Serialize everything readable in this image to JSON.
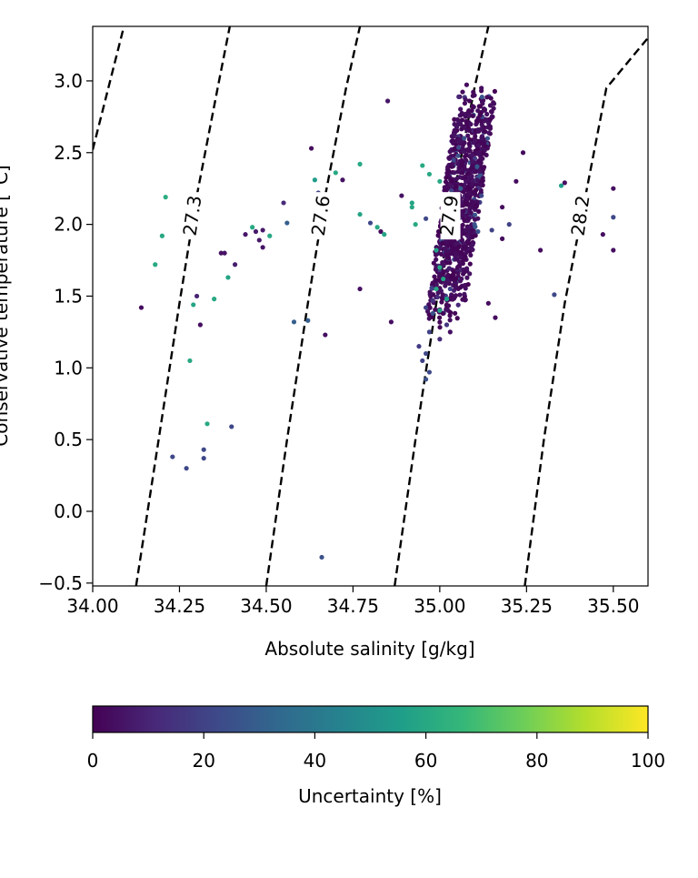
{
  "chart_data": {
    "type": "scatter",
    "xlabel": "Absolute salinity [g/kg]",
    "ylabel": "Conservative temperature [°C]",
    "xlim": [
      34.0,
      35.6
    ],
    "ylim": [
      -0.52,
      3.38
    ],
    "x_ticks": [
      34.0,
      34.25,
      34.5,
      34.75,
      35.0,
      35.25,
      35.5
    ],
    "x_tick_labels": [
      "34.00",
      "34.25",
      "34.50",
      "34.75",
      "35.00",
      "35.25",
      "35.50"
    ],
    "y_ticks": [
      -0.5,
      0.0,
      0.5,
      1.0,
      1.5,
      2.0,
      2.5,
      3.0
    ],
    "y_tick_labels": [
      "−0.5",
      "0.0",
      "0.5",
      "1.0",
      "1.5",
      "2.0",
      "2.5",
      "3.0"
    ],
    "grid": false,
    "isopycnals": {
      "style": "dashed",
      "color": "#000000",
      "lines": [
        {
          "label": "",
          "points": [
            [
              34.0,
              2.52
            ],
            [
              34.09,
              3.38
            ]
          ]
        },
        {
          "label": "27.3",
          "points": [
            [
              34.125,
              -0.52
            ],
            [
              34.19,
              0.5
            ],
            [
              34.25,
              1.45
            ],
            [
              34.3,
              2.2
            ],
            [
              34.36,
              2.95
            ],
            [
              34.395,
              3.38
            ]
          ]
        },
        {
          "label": "27.6",
          "points": [
            [
              34.5,
              -0.52
            ],
            [
              34.56,
              0.5
            ],
            [
              34.62,
              1.45
            ],
            [
              34.67,
              2.2
            ],
            [
              34.73,
              2.95
            ],
            [
              34.77,
              3.38
            ]
          ]
        },
        {
          "label": "27.9",
          "points": [
            [
              34.87,
              -0.52
            ],
            [
              34.93,
              0.5
            ],
            [
              34.99,
              1.45
            ],
            [
              35.04,
              2.2
            ],
            [
              35.1,
              2.95
            ],
            [
              35.14,
              3.38
            ]
          ]
        },
        {
          "label": "28.2",
          "points": [
            [
              35.245,
              -0.52
            ],
            [
              35.3,
              0.5
            ],
            [
              35.36,
              1.45
            ],
            [
              35.42,
              2.2
            ],
            [
              35.48,
              2.95
            ],
            [
              35.6,
              3.3
            ]
          ]
        }
      ]
    },
    "colorbar": {
      "label": "Uncertainty [%]",
      "range": [
        0,
        100
      ],
      "ticks": [
        0,
        20,
        40,
        60,
        80,
        100
      ],
      "tick_labels": [
        "0",
        "20",
        "40",
        "60",
        "80",
        "100"
      ],
      "colormap": "viridis",
      "colormap_stops": [
        "#440154",
        "#482878",
        "#3e4989",
        "#31688e",
        "#26828e",
        "#1f9e89",
        "#35b779",
        "#6ece58",
        "#b5de2b",
        "#fde725"
      ],
      "orientation": "horizontal"
    },
    "series": [
      {
        "color_encoding": "uncertainty_percent",
        "points": [
          [
            34.14,
            1.42,
            3
          ],
          [
            34.18,
            1.72,
            60
          ],
          [
            34.2,
            1.92,
            60
          ],
          [
            34.21,
            2.19,
            62
          ],
          [
            34.23,
            0.38,
            22
          ],
          [
            34.27,
            0.3,
            22
          ],
          [
            34.28,
            1.05,
            60
          ],
          [
            34.29,
            1.44,
            58
          ],
          [
            34.3,
            1.5,
            10
          ],
          [
            34.31,
            1.3,
            4
          ],
          [
            34.32,
            0.43,
            22
          ],
          [
            34.32,
            0.37,
            22
          ],
          [
            34.33,
            0.61,
            60
          ],
          [
            34.35,
            1.48,
            60
          ],
          [
            34.37,
            1.8,
            5
          ],
          [
            34.38,
            1.8,
            5
          ],
          [
            34.39,
            1.63,
            58
          ],
          [
            34.4,
            0.59,
            22
          ],
          [
            34.41,
            1.72,
            8
          ],
          [
            34.44,
            1.93,
            6
          ],
          [
            34.46,
            1.98,
            60
          ],
          [
            34.47,
            1.95,
            7
          ],
          [
            34.48,
            1.89,
            7
          ],
          [
            34.49,
            1.84,
            6
          ],
          [
            34.49,
            1.96,
            7
          ],
          [
            34.51,
            1.92,
            60
          ],
          [
            34.55,
            2.15,
            12
          ],
          [
            34.56,
            2.01,
            30
          ],
          [
            34.58,
            1.32,
            30
          ],
          [
            34.62,
            1.33,
            30
          ],
          [
            34.63,
            2.53,
            3
          ],
          [
            34.64,
            2.31,
            55
          ],
          [
            34.65,
            2.22,
            20
          ],
          [
            34.66,
            -0.32,
            25
          ],
          [
            34.67,
            1.23,
            4
          ],
          [
            34.68,
            2.18,
            5
          ],
          [
            34.7,
            2.36,
            60
          ],
          [
            34.72,
            2.31,
            5
          ],
          [
            34.77,
            2.42,
            60
          ],
          [
            34.77,
            2.07,
            58
          ],
          [
            34.77,
            1.55,
            4
          ],
          [
            34.8,
            2.01,
            22
          ],
          [
            34.82,
            1.98,
            60
          ],
          [
            34.83,
            1.95,
            3
          ],
          [
            34.84,
            1.93,
            58
          ],
          [
            34.85,
            2.86,
            6
          ],
          [
            34.86,
            1.32,
            4
          ],
          [
            34.89,
            2.2,
            5
          ],
          [
            34.92,
            2.12,
            60
          ],
          [
            34.92,
            2.15,
            58
          ],
          [
            34.93,
            2.0,
            60
          ],
          [
            34.95,
            2.41,
            60
          ],
          [
            34.96,
            2.04,
            22
          ],
          [
            34.97,
            2.35,
            60
          ],
          [
            34.99,
            1.82,
            58
          ],
          [
            35.0,
            1.7,
            60
          ],
          [
            35.01,
            1.62,
            58
          ],
          [
            34.99,
            1.55,
            60
          ],
          [
            34.98,
            1.38,
            25
          ],
          [
            34.97,
            1.25,
            20
          ],
          [
            34.96,
            1.1,
            22
          ],
          [
            34.95,
            1.05,
            20
          ],
          [
            34.96,
            0.92,
            25
          ],
          [
            34.97,
            0.97,
            22
          ],
          [
            34.94,
            1.15,
            18
          ],
          [
            34.96,
            1.42,
            20
          ],
          [
            35.0,
            1.4,
            58
          ],
          [
            35.02,
            1.48,
            56
          ],
          [
            35.0,
            2.3,
            60
          ],
          [
            35.05,
            2.0,
            55
          ],
          [
            35.02,
            1.3,
            15
          ],
          [
            35.0,
            1.2,
            12
          ],
          [
            34.98,
            1.47,
            15
          ],
          [
            35.03,
            1.55,
            20
          ],
          [
            35.1,
            2.0,
            25
          ],
          [
            35.15,
            1.96,
            20
          ],
          [
            35.2,
            2.0,
            20
          ],
          [
            35.33,
            1.51,
            22
          ],
          [
            35.35,
            2.27,
            55
          ],
          [
            35.36,
            2.29,
            4
          ],
          [
            35.5,
            2.05,
            22
          ],
          [
            35.5,
            2.25,
            4
          ],
          [
            35.5,
            1.82,
            4
          ],
          [
            35.47,
            1.93,
            4
          ],
          [
            35.1,
            2.9,
            3
          ],
          [
            35.12,
            2.95,
            3
          ],
          [
            35.13,
            2.8,
            3
          ],
          [
            35.18,
            2.12,
            3
          ],
          [
            35.22,
            2.3,
            3
          ],
          [
            35.24,
            2.5,
            3
          ],
          [
            35.29,
            1.82,
            3
          ],
          [
            35.18,
            1.9,
            3
          ],
          [
            35.16,
            1.35,
            3
          ],
          [
            35.14,
            1.45,
            3
          ],
          [
            35.11,
            1.95,
            25
          ],
          [
            35.12,
            2.2,
            22
          ],
          [
            35.06,
            2.25,
            30
          ],
          [
            35.04,
            2.45,
            22
          ],
          [
            35.07,
            2.6,
            25
          ],
          [
            35.03,
            1.25,
            4
          ]
        ]
      }
    ],
    "dense_cluster": {
      "description_value": "core",
      "center": [
        35.08,
        2.05
      ],
      "uncertainty_range": [
        0,
        8
      ]
    }
  }
}
